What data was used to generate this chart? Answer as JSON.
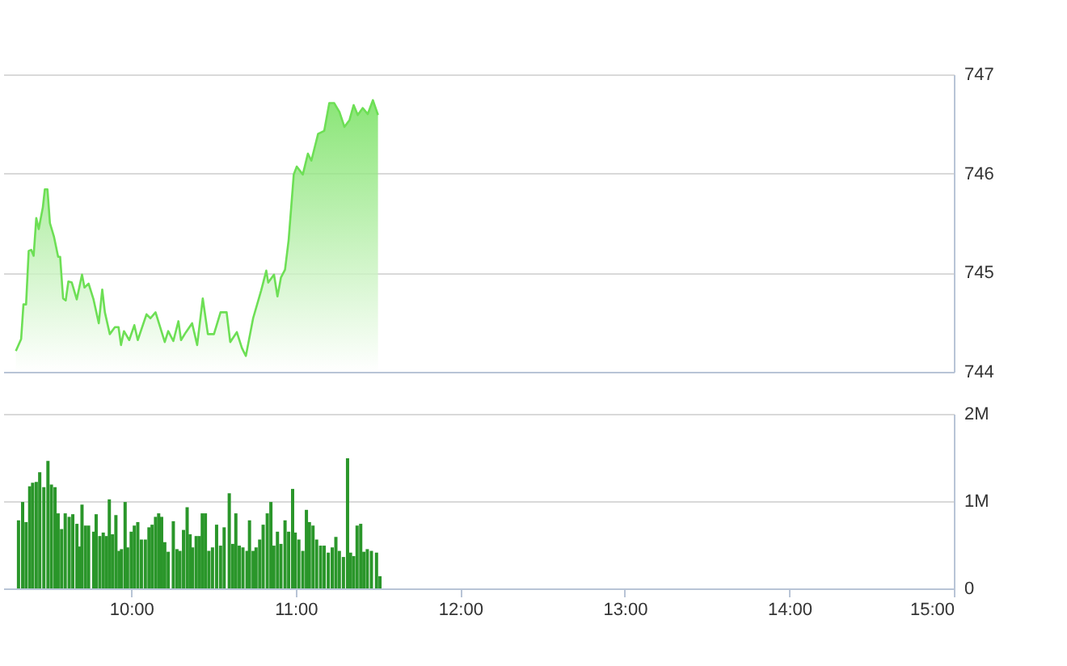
{
  "chart_data": [
    {
      "type": "area",
      "tick_labels": "y",
      "grid": "y",
      "xlim": [
        9.2222,
        15
      ],
      "ylim": [
        744,
        747
      ],
      "yticks": [
        744,
        745,
        746,
        747
      ],
      "x": [
        9.299,
        9.331,
        9.345,
        9.361,
        9.377,
        9.392,
        9.407,
        9.423,
        9.438,
        9.463,
        9.475,
        9.491,
        9.506,
        9.531,
        9.556,
        9.568,
        9.586,
        9.602,
        9.618,
        9.639,
        9.669,
        9.701,
        9.716,
        9.741,
        9.771,
        9.803,
        9.824,
        9.84,
        9.87,
        9.901,
        9.923,
        9.938,
        9.956,
        9.988,
        10.019,
        10.04,
        10.093,
        10.117,
        10.148,
        10.204,
        10.225,
        10.256,
        10.287,
        10.303,
        10.333,
        10.37,
        10.401,
        10.435,
        10.466,
        10.503,
        10.543,
        10.58,
        10.602,
        10.642,
        10.673,
        10.697,
        10.741,
        10.79,
        10.821,
        10.833,
        10.868,
        10.889,
        10.91,
        10.935,
        10.957,
        10.988,
        11.006,
        11.043,
        11.074,
        11.095,
        11.136,
        11.173,
        11.204,
        11.234,
        11.266,
        11.296,
        11.327,
        11.352,
        11.377,
        11.407,
        11.438,
        11.469,
        11.5
      ],
      "series": [
        {
          "color": "#6ddf55",
          "values": [
            744.21,
            744.33,
            744.68,
            744.68,
            745.22,
            745.23,
            745.17,
            745.55,
            745.44,
            745.66,
            745.84,
            745.84,
            745.5,
            745.36,
            745.16,
            745.16,
            744.74,
            744.72,
            744.91,
            744.9,
            744.73,
            744.98,
            744.85,
            744.89,
            744.73,
            744.49,
            744.83,
            744.6,
            744.38,
            744.45,
            744.45,
            744.27,
            744.41,
            744.32,
            744.47,
            744.32,
            744.58,
            744.54,
            744.6,
            744.3,
            744.41,
            744.31,
            744.51,
            744.32,
            744.4,
            744.49,
            744.27,
            744.74,
            744.38,
            744.38,
            744.6,
            744.6,
            744.3,
            744.4,
            744.24,
            744.16,
            744.54,
            744.82,
            745.02,
            744.9,
            744.98,
            744.76,
            744.95,
            745.03,
            745.33,
            745.99,
            746.07,
            745.99,
            746.2,
            746.13,
            746.4,
            746.43,
            746.71,
            746.71,
            746.62,
            746.47,
            746.54,
            746.69,
            746.59,
            746.66,
            746.6,
            746.74,
            746.59
          ]
        }
      ]
    },
    {
      "type": "bar",
      "grid": "y",
      "color": "#2a962a",
      "xlim": [
        9.2222,
        15
      ],
      "xticks": [
        {
          "value": 10,
          "label": "10:00"
        },
        {
          "value": 11,
          "label": "11:00"
        },
        {
          "value": 12,
          "label": "12:00"
        },
        {
          "value": 13,
          "label": "13:00"
        },
        {
          "value": 14,
          "label": "14:00"
        },
        {
          "value": 15,
          "label": "15:00"
        }
      ],
      "ylim": [
        0,
        2000000
      ],
      "yticks": [
        0,
        {
          "value": 1000000,
          "label": "1M"
        },
        {
          "value": 2000000,
          "label": "2M"
        }
      ],
      "x": [
        9.315,
        9.34,
        9.361,
        9.383,
        9.401,
        9.423,
        9.444,
        9.469,
        9.494,
        9.515,
        9.537,
        9.556,
        9.577,
        9.599,
        9.623,
        9.645,
        9.67,
        9.685,
        9.701,
        9.722,
        9.741,
        9.772,
        9.787,
        9.809,
        9.83,
        9.849,
        9.867,
        9.886,
        9.907,
        9.926,
        9.941,
        9.963,
        9.978,
        10.0,
        10.019,
        10.04,
        10.062,
        10.086,
        10.108,
        10.127,
        10.148,
        10.167,
        10.185,
        10.204,
        10.225,
        10.256,
        10.278,
        10.296,
        10.318,
        10.34,
        10.358,
        10.373,
        10.395,
        10.414,
        10.432,
        10.451,
        10.472,
        10.494,
        10.519,
        10.543,
        10.565,
        10.596,
        10.617,
        10.636,
        10.657,
        10.679,
        10.704,
        10.719,
        10.741,
        10.759,
        10.781,
        10.802,
        10.827,
        10.849,
        10.867,
        10.889,
        10.91,
        10.935,
        10.957,
        10.981,
        10.997,
        11.019,
        11.043,
        11.065,
        11.083,
        11.105,
        11.127,
        11.151,
        11.173,
        11.198,
        11.222,
        11.244,
        11.265,
        11.29,
        11.315,
        11.333,
        11.352,
        11.373,
        11.395,
        11.414,
        11.435,
        11.46,
        11.491,
        11.512
      ],
      "values": [
        780000,
        990000,
        760000,
        1170000,
        1210000,
        1220000,
        1330000,
        1160000,
        1460000,
        1190000,
        1160000,
        860000,
        680000,
        860000,
        820000,
        850000,
        740000,
        480000,
        960000,
        720000,
        720000,
        650000,
        850000,
        600000,
        640000,
        600000,
        1020000,
        620000,
        840000,
        430000,
        450000,
        990000,
        470000,
        650000,
        720000,
        760000,
        560000,
        560000,
        700000,
        730000,
        820000,
        860000,
        820000,
        530000,
        420000,
        770000,
        450000,
        430000,
        670000,
        930000,
        620000,
        470000,
        600000,
        600000,
        860000,
        860000,
        430000,
        470000,
        730000,
        490000,
        700000,
        1090000,
        510000,
        860000,
        490000,
        470000,
        430000,
        780000,
        430000,
        470000,
        560000,
        730000,
        860000,
        990000,
        490000,
        650000,
        510000,
        780000,
        650000,
        1140000,
        640000,
        560000,
        430000,
        900000,
        760000,
        720000,
        560000,
        490000,
        490000,
        410000,
        470000,
        590000,
        430000,
        360000,
        1490000,
        410000,
        370000,
        720000,
        740000,
        420000,
        450000,
        430000,
        410000,
        140000
      ]
    }
  ]
}
